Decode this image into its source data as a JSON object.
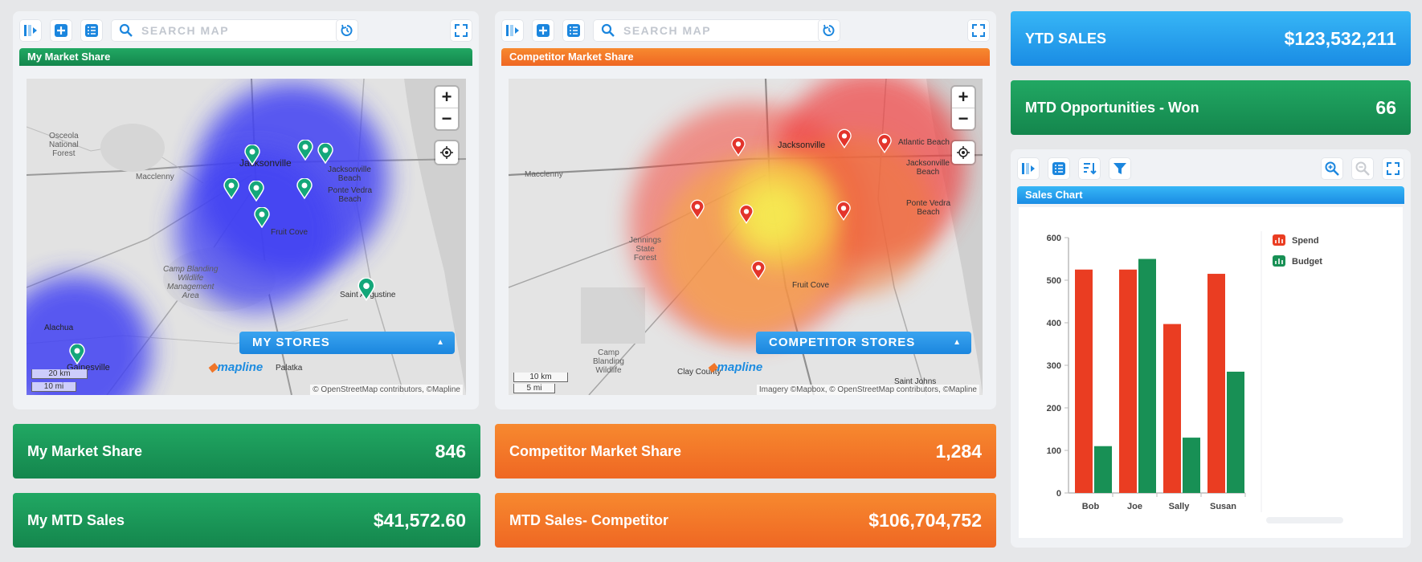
{
  "panels": {
    "left": {
      "search_placeholder": "SEARCH MAP",
      "title": "My Market Share",
      "stores_tab": "MY STORES",
      "brand": "mapline",
      "scale_km": "20 km",
      "scale_mi": "10 mi",
      "attribution": "© OpenStreetMap contributors, ©Mapline",
      "labels": {
        "osceola": "Osceola\nNational\nForest",
        "macclenny": "Macclenny",
        "jacksonville": "Jacksonville",
        "jax_beach": "Jacksonville\nBeach",
        "ponte": "Ponte Vedra\nBeach",
        "fruit_cove": "Fruit Cove",
        "camp": "Camp Blanding\nWildlife\nManagement\nArea",
        "st_aug": "Saint Augustine",
        "alachua": "Alachua",
        "gainesville": "Gainesville",
        "palatka": "Palatka"
      }
    },
    "middle": {
      "search_placeholder": "SEARCH MAP",
      "title": "Competitor Market Share",
      "stores_tab": "COMPETITOR STORES",
      "brand": "mapline",
      "scale_km": "10 km",
      "scale_mi": "5 mi",
      "attribution": "Imagery ©Mapbox, © OpenStreetMap contributors, ©Mapline",
      "labels": {
        "macclenny": "Macclenny",
        "jacksonville": "Jacksonville",
        "atlantic": "Atlantic Beach",
        "jax_beach": "Jacksonville\nBeach",
        "ponte": "Ponte Vedra\nBeach",
        "jennings": "Jennings\nState\nForest",
        "fruit_cove": "Fruit Cove",
        "camp": "Camp\nBlanding\nWildlife",
        "clay": "Clay County",
        "st_johns": "Saint Johns"
      }
    }
  },
  "kpis": {
    "my_market_share": {
      "label": "My Market Share",
      "value": "846"
    },
    "my_mtd_sales": {
      "label": "My MTD Sales",
      "value": "$41,572.60"
    },
    "competitor_share": {
      "label": "Competitor Market Share",
      "value": "1,284"
    },
    "mtd_sales_competitor": {
      "label": "MTD Sales- Competitor",
      "value": "$106,704,752"
    },
    "ytd_sales": {
      "label": "YTD SALES",
      "value": "$123,532,211"
    },
    "mtd_opps": {
      "label": "MTD Opportunities - Won",
      "value": "66"
    }
  },
  "chart_panel": {
    "title": "Sales Chart"
  },
  "colors": {
    "green": "#14864d",
    "orange": "#ef6723",
    "blue": "#1a8ce4",
    "spend": "#ea3d22",
    "budget": "#189055"
  },
  "chart_data": {
    "type": "bar",
    "title": "Sales Chart",
    "categories": [
      "Bob",
      "Joe",
      "Sally",
      "Susan"
    ],
    "series": [
      {
        "name": "Spend",
        "values": [
          525,
          525,
          397,
          515
        ]
      },
      {
        "name": "Budget",
        "values": [
          110,
          550,
          130,
          285
        ]
      }
    ],
    "ylim": [
      0,
      600
    ],
    "yticks": [
      "0",
      "100",
      "200",
      "300",
      "400",
      "500",
      "600"
    ],
    "legend": "right",
    "grid": false
  }
}
